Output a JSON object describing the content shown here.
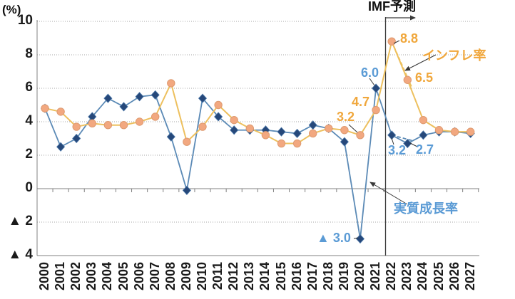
{
  "chart_data": {
    "type": "line",
    "title": "IMF予測",
    "y_unit": "(%)",
    "x": [
      2000,
      2001,
      2002,
      2003,
      2004,
      2005,
      2006,
      2007,
      2008,
      2009,
      2010,
      2011,
      2012,
      2013,
      2014,
      2015,
      2016,
      2017,
      2018,
      2019,
      2020,
      2021,
      2022,
      2023,
      2024,
      2025,
      2026,
      2027
    ],
    "x_tick_labels": [
      "2000",
      "2001",
      "2002",
      "2003",
      "2004",
      "2005",
      "2006",
      "2007",
      "2008",
      "2009",
      "2010",
      "2011",
      "2012",
      "2013",
      "2014",
      "2015",
      "2016",
      "2017",
      "2018",
      "2019",
      "2020",
      "2021",
      "2022",
      "2023",
      "2024",
      "2025",
      "2026",
      "2027"
    ],
    "y_ticks": [
      10,
      8,
      6,
      4,
      2,
      0,
      -2,
      -4
    ],
    "y_tick_labels": [
      "10",
      "8",
      "6",
      "4",
      "2",
      "0",
      "▲ 2",
      "▲ 4"
    ],
    "ylim": [
      -4,
      10
    ],
    "grid": "horizontal dotted",
    "legend_position": "inline callouts",
    "forecast_divider": {
      "label": "IMF予測",
      "between_years": [
        2021,
        2022
      ]
    },
    "series": [
      {
        "name": "実質成長率",
        "style": "solid",
        "marker": "diamond",
        "color": "#5B8AB6",
        "marker_color": "#26487A",
        "label_color": "#5B9BD5",
        "x": [
          2000,
          2001,
          2002,
          2003,
          2004,
          2005,
          2006,
          2007,
          2008,
          2009,
          2010,
          2011,
          2012,
          2013,
          2014,
          2015,
          2016,
          2017,
          2018,
          2019,
          2020,
          2021,
          2022,
          2023,
          2024,
          2025,
          2026,
          2027
        ],
        "values": [
          4.8,
          2.5,
          3.0,
          4.3,
          5.4,
          4.9,
          5.5,
          5.6,
          3.1,
          -0.1,
          5.4,
          4.3,
          3.5,
          3.5,
          3.5,
          3.4,
          3.3,
          3.8,
          3.6,
          2.8,
          -3.0,
          6.0,
          3.2,
          2.7,
          3.2,
          3.4,
          3.4,
          3.3
        ]
      },
      {
        "name": "インフレ率",
        "style": "solid",
        "marker": "circle",
        "color": "#EDC05E",
        "marker_color": "#F2A880",
        "label_color": "#F0A73C",
        "x": [
          2000,
          2001,
          2002,
          2003,
          2004,
          2005,
          2006,
          2007,
          2008,
          2009,
          2010,
          2011,
          2012,
          2013,
          2014,
          2015,
          2016,
          2017,
          2018,
          2019,
          2020,
          2021,
          2022,
          2023,
          2024,
          2025,
          2026,
          2027
        ],
        "values": [
          4.8,
          4.6,
          3.7,
          3.9,
          3.8,
          3.8,
          4.0,
          4.3,
          6.3,
          2.8,
          3.7,
          5.0,
          4.1,
          3.6,
          3.2,
          2.7,
          2.7,
          3.3,
          3.6,
          3.5,
          3.2,
          4.7,
          8.8,
          6.5,
          4.1,
          3.5,
          3.4,
          3.4
        ]
      },
      {
        "name": "実質成長率（点線）",
        "style": "dashed",
        "marker": "none",
        "color": "#5B8AB6",
        "x": [
          2022,
          2023.4
        ],
        "values": [
          3.2,
          2.85
        ]
      },
      {
        "name": "インフレ率（点線）",
        "style": "dashed",
        "marker": "none",
        "color": "#EDC05E",
        "x": [
          2022,
          2023.3
        ],
        "values": [
          8.8,
          6.0
        ]
      }
    ],
    "annotations": {
      "growth_2020": {
        "text": "▲ 3.0",
        "series": "実質成長率",
        "year": 2020,
        "value": -3.0
      },
      "growth_2021": {
        "text": "6.0",
        "series": "実質成長率",
        "year": 2021,
        "value": 6.0
      },
      "growth_2022": {
        "text": "3.2",
        "series": "実質成長率",
        "year": 2022,
        "value": 3.2
      },
      "growth_2023": {
        "text": "2.7",
        "series": "実質成長率",
        "year": 2023,
        "value": 2.7
      },
      "inflation_2020": {
        "text": "3.2",
        "series": "インフレ率",
        "year": 2020,
        "value": 3.2
      },
      "inflation_2021": {
        "text": "4.7",
        "series": "インフレ率",
        "year": 2021,
        "value": 4.7
      },
      "inflation_2022": {
        "text": "8.8",
        "series": "インフレ率",
        "year": 2022,
        "value": 8.8
      },
      "inflation_2023": {
        "text": "6.5",
        "series": "インフレ率",
        "year": 2023,
        "value": 6.5
      }
    },
    "colors": {
      "growth_line": "#5B8AB6",
      "growth_marker": "#26487A",
      "growth_label": "#5B9BD5",
      "inflation_line": "#EDC05E",
      "inflation_marker": "#F2A880",
      "inflation_label": "#F0A73C",
      "grid": "#A6A6A6",
      "axis": "#808080",
      "divider": "#3a3a3a",
      "axis_text": "#1a1a1a"
    }
  }
}
